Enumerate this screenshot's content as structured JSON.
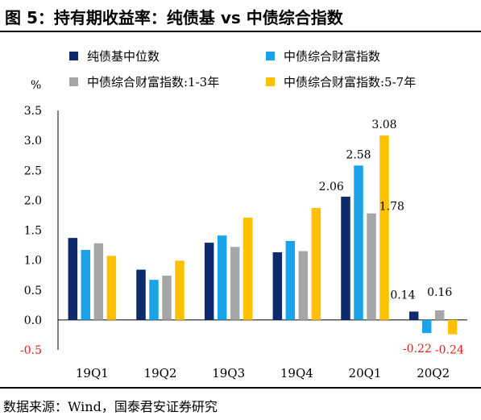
{
  "title": "图 5：持有期收益率：纯债基 vs 中债综合指数",
  "source": "数据来源：Wind，国泰君安证券研究",
  "chart_data": {
    "type": "bar",
    "y_unit": "%",
    "ylim": [
      -0.5,
      3.5
    ],
    "yticks": [
      "-0.5",
      "0.0",
      "0.5",
      "1.0",
      "1.5",
      "2.0",
      "2.5",
      "3.0",
      "3.5"
    ],
    "ytick_values": [
      -0.5,
      0.0,
      0.5,
      1.0,
      1.5,
      2.0,
      2.5,
      3.0,
      3.5
    ],
    "grid": false,
    "legend_position": "top",
    "categories": [
      "19Q1",
      "19Q2",
      "19Q3",
      "19Q4",
      "20Q1",
      "20Q2"
    ],
    "series": [
      {
        "name": "纯债基中位数",
        "color": "#0d2a6b",
        "values": [
          1.37,
          0.84,
          1.29,
          1.13,
          2.06,
          0.14
        ]
      },
      {
        "name": "中债综合财富指数",
        "color": "#1aa3e8",
        "values": [
          1.17,
          0.67,
          1.41,
          1.32,
          2.58,
          -0.22
        ]
      },
      {
        "name": "中债综合财富指数:1-3年",
        "color": "#a6a6a6",
        "values": [
          1.28,
          0.74,
          1.22,
          1.15,
          1.78,
          0.16
        ]
      },
      {
        "name": "中债综合财富指数:5-7年",
        "color": "#ffc000",
        "values": [
          1.07,
          0.99,
          1.71,
          1.87,
          3.08,
          -0.24
        ]
      }
    ],
    "data_labels": [
      {
        "category": "20Q1",
        "series": 0,
        "text": "2.06",
        "color": "#000000"
      },
      {
        "category": "20Q1",
        "series": 1,
        "text": "2.58",
        "color": "#000000"
      },
      {
        "category": "20Q1",
        "series": 2,
        "text": "1.78",
        "color": "#000000"
      },
      {
        "category": "20Q1",
        "series": 3,
        "text": "3.08",
        "color": "#000000"
      },
      {
        "category": "20Q2",
        "series": 0,
        "text": "0.14",
        "color": "#000000"
      },
      {
        "category": "20Q2",
        "series": 1,
        "text": "-0.22",
        "color": "#e0201a"
      },
      {
        "category": "20Q2",
        "series": 2,
        "text": "0.16",
        "color": "#000000"
      },
      {
        "category": "20Q2",
        "series": 3,
        "text": "-0.24",
        "color": "#e0201a"
      }
    ],
    "negative_tick_color": "#e0201a"
  }
}
